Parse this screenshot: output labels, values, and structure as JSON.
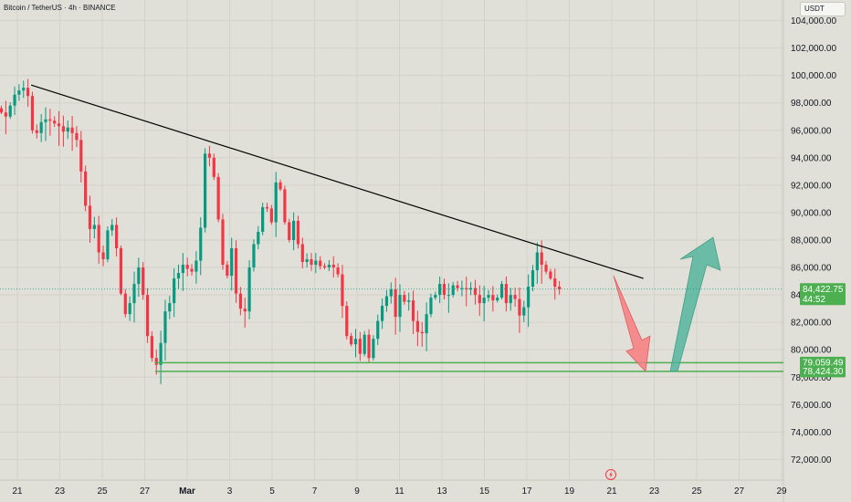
{
  "header": {
    "symbol_title": "Bitcoin / TetherUS · 4h · BINANCE",
    "currency_label": "USDT"
  },
  "colors": {
    "background": "#e1e0d8",
    "bull": "#089981",
    "bear": "#f23645",
    "trendline": "#000000",
    "support": "#4caf50",
    "down_arrow": "#f77c80",
    "up_arrow": "#4db39a",
    "current_price_bg": "#4caf50"
  },
  "chart_data": {
    "type": "candlestick",
    "title": "",
    "xlabel": "",
    "ylabel": "",
    "ylim": [
      70500,
      105500
    ],
    "y_ticks": [
      "104,000.00",
      "102,000.00",
      "100,000.00",
      "98,000.00",
      "96,000.00",
      "94,000.00",
      "92,000.00",
      "90,000.00",
      "88,000.00",
      "86,000.00",
      "84,000.00",
      "82,000.00",
      "80,000.00",
      "78,000.00",
      "76,000.00",
      "74,000.00",
      "72,000.00"
    ],
    "x_ticks": [
      "21",
      "23",
      "25",
      "27",
      "Mar",
      "3",
      "5",
      "7",
      "9",
      "11",
      "13",
      "15",
      "17",
      "19",
      "21",
      "23",
      "25",
      "27",
      "29"
    ],
    "price_close_series": [
      [
        97300,
        97000,
        97800,
        98600,
        98900,
        99100,
        98500,
        96000,
        95800,
        96600,
        96800,
        96700,
        96500,
        96300,
        95900,
        96200,
        95800,
        95300,
        93000,
        90500,
        88800,
        89100,
        87100,
        86600,
        88700,
        89100,
        87400,
        84100,
        82600,
        83400,
        84800,
        86000,
        84000,
        81000,
        79400,
        78900,
        80500,
        82800,
        83400,
        85200,
        85600,
        86200,
        85900,
        85700,
        86500,
        88900,
        94300,
        94000,
        92600,
        89500,
        86200,
        85400,
        87400,
        84100,
        83000,
        82800,
        86000,
        87700,
        88600,
        90400,
        90300,
        89300,
        92200,
        91700,
        89300,
        88000,
        89400,
        87700,
        86400,
        86600,
        86200,
        86500,
        86100,
        86000,
        86200,
        86000,
        85500,
        83200,
        81000,
        80400,
        80800,
        79700,
        81100,
        79400,
        80800,
        82100,
        83200,
        83900,
        84400,
        82400,
        84000,
        83500,
        83600,
        82100,
        81300,
        81200,
        82600,
        83800,
        84000,
        84800,
        84000,
        84000,
        84700,
        84500,
        84500,
        84400,
        84500,
        84000,
        83400,
        83800,
        84000,
        83600,
        83800,
        84800,
        83400,
        84000,
        83700,
        82500,
        83100,
        84600,
        85800,
        87100,
        86200,
        85700,
        85200,
        84600,
        84400
      ]
    ],
    "series": [
      {
        "name": "",
        "current_price": "84,422.75",
        "countdown": "44:52"
      }
    ],
    "trendline": {
      "from": {
        "x_index": 9,
        "y": 99300
      },
      "to": {
        "x_index": 139,
        "y": 85200
      }
    },
    "support_levels": [
      "79,059.49",
      "78,424.30"
    ],
    "support_values": [
      79059.49,
      78424.3
    ],
    "projection": {
      "down_target_y": 78424.3,
      "up_target_y": 88200
    },
    "grid": true
  }
}
